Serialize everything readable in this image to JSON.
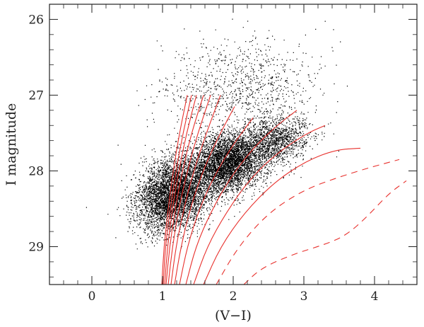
{
  "chart_data": {
    "type": "scatter",
    "title": "",
    "xlabel": "(V−I)",
    "ylabel": "I magnitude",
    "xlim": [
      -0.6,
      4.6
    ],
    "ylim": [
      29.5,
      25.8
    ],
    "y_axis_inverted": true,
    "grid": false,
    "legend": "none",
    "x_ticks": [
      0,
      1,
      2,
      3,
      4
    ],
    "x_tick_labels": [
      "0",
      "1",
      "2",
      "3",
      "4"
    ],
    "y_ticks": [
      26,
      27,
      28,
      29
    ],
    "y_tick_labels": [
      "26",
      "27",
      "28",
      "29"
    ],
    "colors": {
      "points": "#000000",
      "isochrones": "#e8302c",
      "axes": "#222222"
    },
    "scatter_cloud": {
      "description_points": "dense field of stellar photometry points",
      "approx_count": 12000,
      "blobs": [
        {
          "cx": 1.25,
          "cy": 28.3,
          "sx": 0.45,
          "sy": 0.42,
          "weight": 0.45
        },
        {
          "cx": 1.9,
          "cy": 27.9,
          "sx": 0.45,
          "sy": 0.35,
          "weight": 0.35
        },
        {
          "cx": 2.5,
          "cy": 27.6,
          "sx": 0.45,
          "sy": 0.3,
          "weight": 0.12
        },
        {
          "cx": 1.8,
          "cy": 26.9,
          "sx": 1.0,
          "sy": 0.55,
          "weight": 0.08
        }
      ]
    },
    "series": [
      {
        "style": "solid",
        "points": [
          [
            0.99,
            29.5
          ],
          [
            1.02,
            29.0
          ],
          [
            1.08,
            28.5
          ],
          [
            1.15,
            28.0
          ],
          [
            1.24,
            27.5
          ],
          [
            1.35,
            27.0
          ]
        ]
      },
      {
        "style": "solid",
        "points": [
          [
            1.01,
            29.5
          ],
          [
            1.04,
            29.0
          ],
          [
            1.11,
            28.5
          ],
          [
            1.19,
            28.0
          ],
          [
            1.29,
            27.5
          ],
          [
            1.41,
            27.0
          ]
        ]
      },
      {
        "style": "solid",
        "points": [
          [
            1.03,
            29.5
          ],
          [
            1.07,
            29.0
          ],
          [
            1.14,
            28.5
          ],
          [
            1.23,
            28.0
          ],
          [
            1.34,
            27.5
          ],
          [
            1.48,
            27.0
          ]
        ]
      },
      {
        "style": "solid",
        "points": [
          [
            1.05,
            29.5
          ],
          [
            1.1,
            29.0
          ],
          [
            1.18,
            28.5
          ],
          [
            1.28,
            28.0
          ],
          [
            1.41,
            27.5
          ],
          [
            1.58,
            27.0
          ]
        ]
      },
      {
        "style": "solid",
        "points": [
          [
            1.08,
            29.5
          ],
          [
            1.14,
            29.0
          ],
          [
            1.23,
            28.5
          ],
          [
            1.35,
            28.0
          ],
          [
            1.5,
            27.5
          ],
          [
            1.68,
            27.0
          ]
        ]
      },
      {
        "style": "solid",
        "points": [
          [
            1.12,
            29.5
          ],
          [
            1.19,
            29.0
          ],
          [
            1.3,
            28.5
          ],
          [
            1.44,
            28.0
          ],
          [
            1.62,
            27.5
          ],
          [
            1.82,
            27.0
          ]
        ]
      },
      {
        "style": "solid",
        "points": [
          [
            1.17,
            29.5
          ],
          [
            1.26,
            29.0
          ],
          [
            1.39,
            28.5
          ],
          [
            1.57,
            28.0
          ],
          [
            1.79,
            27.55
          ],
          [
            2.02,
            27.15
          ]
        ]
      },
      {
        "style": "solid",
        "points": [
          [
            1.24,
            29.5
          ],
          [
            1.35,
            29.0
          ],
          [
            1.52,
            28.5
          ],
          [
            1.74,
            28.05
          ],
          [
            2.0,
            27.65
          ],
          [
            2.28,
            27.3
          ]
        ]
      },
      {
        "style": "solid",
        "points": [
          [
            1.33,
            29.5
          ],
          [
            1.47,
            29.0
          ],
          [
            1.68,
            28.55
          ],
          [
            1.95,
            28.1
          ],
          [
            2.28,
            27.7
          ],
          [
            2.62,
            27.4
          ],
          [
            2.9,
            27.2
          ]
        ]
      },
      {
        "style": "solid",
        "points": [
          [
            1.44,
            29.5
          ],
          [
            1.63,
            29.0
          ],
          [
            1.9,
            28.55
          ],
          [
            2.24,
            28.1
          ],
          [
            2.64,
            27.75
          ],
          [
            3.05,
            27.5
          ],
          [
            3.3,
            27.4
          ]
        ]
      },
      {
        "style": "solid",
        "points": [
          [
            1.58,
            29.5
          ],
          [
            1.82,
            29.0
          ],
          [
            2.16,
            28.55
          ],
          [
            2.58,
            28.15
          ],
          [
            3.03,
            27.87
          ],
          [
            3.45,
            27.72
          ],
          [
            3.8,
            27.7
          ]
        ]
      },
      {
        "style": "dashed",
        "points": [
          [
            1.76,
            29.5
          ],
          [
            2.07,
            29.0
          ],
          [
            2.5,
            28.55
          ],
          [
            3.0,
            28.25
          ],
          [
            3.5,
            28.08
          ],
          [
            3.95,
            27.95
          ],
          [
            4.35,
            27.85
          ]
        ]
      },
      {
        "style": "dashed",
        "points": [
          [
            2.15,
            29.5
          ],
          [
            2.4,
            29.28
          ],
          [
            2.85,
            29.1
          ],
          [
            3.3,
            28.97
          ],
          [
            3.6,
            28.85
          ],
          [
            3.9,
            28.6
          ],
          [
            4.2,
            28.3
          ],
          [
            4.45,
            28.13
          ]
        ]
      }
    ]
  }
}
